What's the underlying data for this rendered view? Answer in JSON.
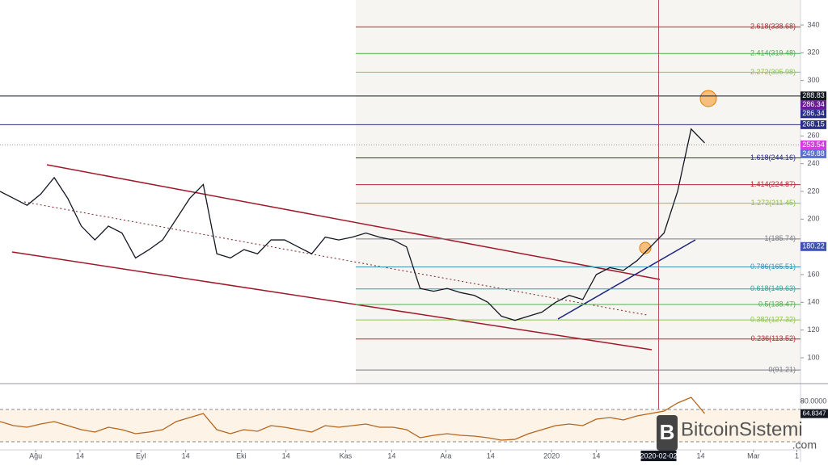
{
  "chart_data": [
    {
      "type": "line",
      "color": "#131722",
      "values": [
        220,
        215,
        210,
        218,
        230,
        215,
        195,
        185,
        195,
        190,
        172,
        178,
        185,
        200,
        215,
        225,
        175,
        172,
        178,
        175,
        185,
        185,
        180,
        175,
        187,
        185,
        187,
        190,
        187,
        185,
        180,
        150,
        148,
        150,
        147,
        145,
        140,
        130,
        127,
        130,
        133,
        140,
        145,
        142,
        160,
        165,
        163,
        170,
        180,
        190,
        220,
        265,
        255
      ],
      "xlim": [
        0,
        59.07
      ],
      "xticks": [
        {
          "value": 2.63,
          "label": "Ağu"
        },
        {
          "value": 5.9,
          "label": "14"
        },
        {
          "value": 10.4,
          "label": "Eyl"
        },
        {
          "value": 13.7,
          "label": "14"
        },
        {
          "value": 17.8,
          "label": "Eki"
        },
        {
          "value": 21.1,
          "label": "14"
        },
        {
          "value": 25.5,
          "label": "Kas"
        },
        {
          "value": 28.9,
          "label": "14"
        },
        {
          "value": 32.9,
          "label": "Ara"
        },
        {
          "value": 36.2,
          "label": "14"
        },
        {
          "value": 40.7,
          "label": "2020"
        },
        {
          "value": 44.0,
          "label": "14"
        },
        {
          "value": 51.7,
          "label": "14"
        },
        {
          "value": 55.6,
          "label": "Mar"
        },
        {
          "value": 58.8,
          "label": "1"
        }
      ],
      "crosshair_x": {
        "value": 48.6,
        "label": "2020-02-02"
      },
      "ylim": [
        81.36,
        358.06
      ],
      "yticks": [
        100,
        120,
        140,
        160,
        180,
        200,
        220,
        240,
        260,
        280,
        300,
        320,
        340
      ],
      "fib_levels": [
        {
          "value": 338.68,
          "label": "2.618(338.68)",
          "color": "#b22833"
        },
        {
          "value": 319.48,
          "label": "2.414(319.48)",
          "color": "#4caf50"
        },
        {
          "value": 305.98,
          "label": "2.272(305.98)",
          "color": "#8bc34a"
        },
        {
          "value": 244.16,
          "label": "1.618(244.16)",
          "color": "#2a2e88"
        },
        {
          "value": 224.87,
          "label": "1.414(224.87)",
          "color": "#b22833"
        },
        {
          "value": 211.45,
          "label": "1.272(211.45)",
          "color": "#8bc34a"
        },
        {
          "value": 185.74,
          "label": "1(185.74)",
          "color": "#787b86"
        },
        {
          "value": 165.51,
          "label": "0.786(165.51)",
          "color": "#3d8fb5"
        },
        {
          "value": 149.63,
          "label": "0.618(149.63)",
          "color": "#26a69a"
        },
        {
          "value": 138.47,
          "label": "0.5(138.47)",
          "color": "#4caf50"
        },
        {
          "value": 127.32,
          "label": "0.382(127.32)",
          "color": "#8bc34a"
        },
        {
          "value": 113.52,
          "label": "0.236(113.52)",
          "color": "#b22833"
        },
        {
          "value": 91.21,
          "label": "0(91.21)",
          "color": "#787b86"
        }
      ],
      "price_tags": [
        {
          "value": 288.83,
          "color": "#131722"
        },
        {
          "value": 286.34,
          "color": "#6a1b9a"
        },
        {
          "value": 286.34,
          "color": "#2a2e88"
        },
        {
          "value": 268.15,
          "color": "#2a2e88"
        },
        {
          "value": 253.54,
          "color": "#d63ce0"
        },
        {
          "value": 249.88,
          "color": "#5b6fd6"
        },
        {
          "value": 180.22,
          "color": "#3f51b5"
        }
      ]
    },
    {
      "type": "rsi",
      "color": "#b5651d",
      "values": [
        55,
        50,
        48,
        52,
        55,
        50,
        45,
        42,
        48,
        45,
        40,
        42,
        45,
        55,
        60,
        65,
        45,
        40,
        45,
        43,
        50,
        48,
        45,
        42,
        50,
        48,
        50,
        52,
        48,
        48,
        45,
        35,
        38,
        40,
        38,
        37,
        35,
        32,
        33,
        40,
        45,
        50,
        52,
        50,
        58,
        60,
        57,
        62,
        65,
        68,
        78,
        85,
        65
      ],
      "ylim": [
        17,
        95
      ],
      "yticks": [
        {
          "value": 80,
          "label": "80.0000"
        }
      ],
      "bands": [
        30,
        70
      ],
      "price_tag": 64.8347
    },
    {
      "watermark": "BitcoinSistemi",
      "watermark_sub": ".com"
    }
  ]
}
